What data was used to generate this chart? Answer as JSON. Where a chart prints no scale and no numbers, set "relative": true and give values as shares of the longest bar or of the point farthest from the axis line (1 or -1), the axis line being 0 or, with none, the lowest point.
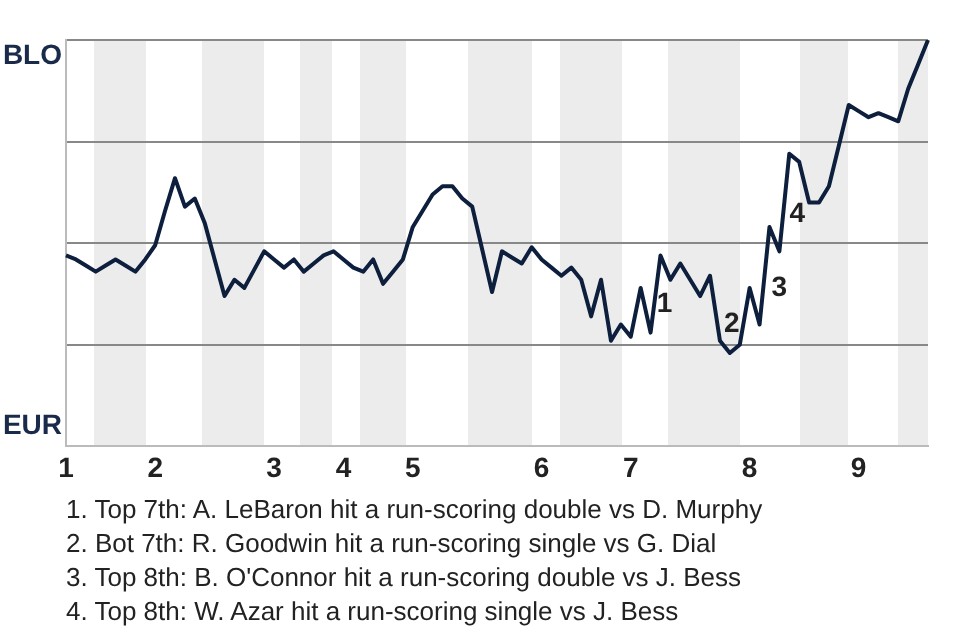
{
  "chart_data": {
    "type": "line",
    "relative": true,
    "categories": [
      "1",
      null,
      null,
      null,
      null,
      null,
      null,
      null,
      null,
      "2",
      null,
      null,
      null,
      null,
      null,
      null,
      null,
      null,
      null,
      null,
      null,
      "3",
      null,
      null,
      null,
      null,
      null,
      null,
      "4",
      null,
      null,
      null,
      null,
      null,
      null,
      "5",
      null,
      null,
      null,
      null,
      null,
      null,
      null,
      null,
      null,
      null,
      null,
      null,
      "6",
      null,
      null,
      null,
      null,
      null,
      null,
      null,
      null,
      "7",
      null,
      null,
      null,
      null,
      null,
      null,
      null,
      null,
      null,
      null,
      null,
      "8",
      null,
      null,
      null,
      null,
      null,
      null,
      null,
      null,
      null,
      null,
      "9",
      null,
      null,
      null,
      null,
      null,
      null,
      null
    ],
    "series": [
      {
        "color": "#0d1f3c",
        "values": [
          0.47,
          0.46,
          0.445,
          0.43,
          0.445,
          0.46,
          0.445,
          0.43,
          0.46,
          0.495,
          0.58,
          0.66,
          0.59,
          0.61,
          0.55,
          0.46,
          0.37,
          0.41,
          0.39,
          0.435,
          0.48,
          0.46,
          0.44,
          0.46,
          0.43,
          0.45,
          0.47,
          0.48,
          0.46,
          0.44,
          0.43,
          0.46,
          0.4,
          0.43,
          0.46,
          0.54,
          0.58,
          0.62,
          0.64,
          0.64,
          0.61,
          0.59,
          0.485,
          0.38,
          0.48,
          0.465,
          0.45,
          0.49,
          0.46,
          0.44,
          0.42,
          0.44,
          0.41,
          0.32,
          0.41,
          0.26,
          0.3,
          0.27,
          0.39,
          0.28,
          0.47,
          0.41,
          0.45,
          0.41,
          0.37,
          0.42,
          0.26,
          0.23,
          0.25,
          0.39,
          0.3,
          0.54,
          0.48,
          0.72,
          0.7,
          0.6,
          0.6,
          0.64,
          0.74,
          0.84,
          0.825,
          0.81,
          0.82,
          0.81,
          0.8,
          0.88,
          0.94,
          1
        ]
      }
    ],
    "grid": "y",
    "marker": "none",
    "line_style": "solid",
    "legend": false,
    "annotations": [
      "BLO",
      "EUR",
      "1",
      "2",
      "3",
      "4",
      "1. Top 7th: A. LeBaron hit a run-scoring double vs D. Murphy",
      "2. Bot 7th: R. Goodwin hit a run-scoring single vs G. Dial",
      "3. Top 8th: B. O'Connor hit a run-scoring double vs J. Bess",
      "4. Top 8th: W. Azar hit a run-scoring single vs J. Bess"
    ]
  }
}
